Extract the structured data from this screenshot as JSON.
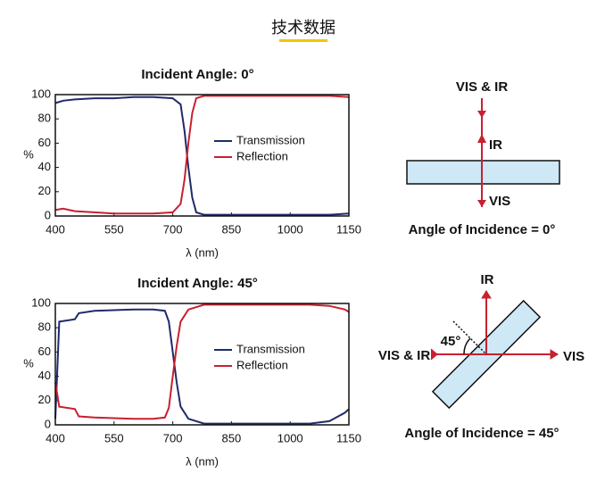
{
  "header": {
    "title": "技术数据"
  },
  "chart_data": [
    {
      "type": "line",
      "title": "Incident Angle: 0°",
      "xlabel": "λ (nm)",
      "ylabel": "%",
      "xlim": [
        400,
        1150
      ],
      "ylim": [
        0,
        100
      ],
      "xticks": [
        400,
        550,
        700,
        850,
        1000,
        1150
      ],
      "yticks": [
        0,
        20,
        40,
        60,
        80,
        100
      ],
      "series": [
        {
          "name": "Transmission",
          "color": "#1f2a6b",
          "x": [
            400,
            420,
            450,
            500,
            550,
            600,
            650,
            700,
            720,
            730,
            740,
            750,
            760,
            780,
            850,
            1000,
            1100,
            1150
          ],
          "values": [
            93,
            95,
            96,
            97,
            97,
            98,
            98,
            97,
            92,
            70,
            40,
            15,
            3,
            1,
            1,
            1,
            1,
            2
          ]
        },
        {
          "name": "Reflection",
          "color": "#c8202f",
          "x": [
            400,
            420,
            450,
            500,
            550,
            600,
            650,
            700,
            720,
            730,
            740,
            750,
            760,
            780,
            850,
            1000,
            1100,
            1150
          ],
          "values": [
            5,
            6,
            4,
            3,
            2,
            2,
            2,
            3,
            10,
            30,
            60,
            85,
            97,
            99,
            99,
            99,
            99,
            98
          ]
        }
      ]
    },
    {
      "type": "line",
      "title": "Incident Angle: 45°",
      "xlabel": "λ (nm)",
      "ylabel": "%",
      "xlim": [
        400,
        1150
      ],
      "ylim": [
        0,
        100
      ],
      "xticks": [
        400,
        550,
        700,
        850,
        1000,
        1150
      ],
      "yticks": [
        0,
        20,
        40,
        60,
        80,
        100
      ],
      "series": [
        {
          "name": "Transmission",
          "color": "#1f2a6b",
          "x": [
            400,
            410,
            450,
            460,
            500,
            600,
            650,
            680,
            690,
            700,
            710,
            720,
            740,
            780,
            900,
            1050,
            1100,
            1140,
            1150
          ],
          "values": [
            5,
            85,
            87,
            92,
            94,
            95,
            95,
            94,
            85,
            60,
            35,
            15,
            5,
            1,
            1,
            1,
            3,
            10,
            13
          ]
        },
        {
          "name": "Reflection",
          "color": "#c8202f",
          "x": [
            400,
            410,
            450,
            460,
            500,
            600,
            650,
            680,
            690,
            700,
            710,
            720,
            740,
            780,
            900,
            1050,
            1100,
            1140,
            1150
          ],
          "values": [
            35,
            15,
            13,
            7,
            6,
            5,
            5,
            6,
            14,
            40,
            65,
            85,
            95,
            99,
            99,
            99,
            98,
            95,
            93
          ]
        }
      ]
    }
  ],
  "diagrams": [
    {
      "incoming": "VIS & IR",
      "reflected": "IR",
      "transmitted": "VIS",
      "caption": "Angle of Incidence = 0°"
    },
    {
      "incoming": "VIS & IR",
      "reflected": "IR",
      "transmitted": "VIS",
      "angle": "45°",
      "caption": "Angle of Incidence = 45°"
    }
  ]
}
